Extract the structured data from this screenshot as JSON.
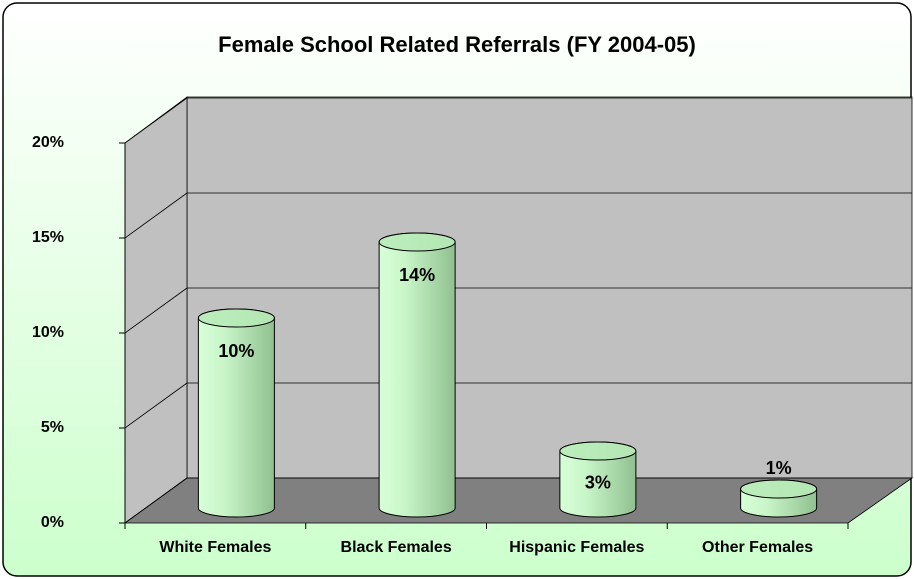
{
  "chart_data": {
    "type": "bar3d",
    "title": "Female School Related Referrals (FY 2004-05)",
    "categories": [
      "White Females",
      "Black Females",
      "Hispanic Females",
      "Other Females"
    ],
    "values": [
      10,
      14,
      3,
      1
    ],
    "value_labels": [
      "10%",
      "14%",
      "3%",
      "1%"
    ],
    "color": "#b8eab8",
    "ylim": [
      0,
      20
    ],
    "yticks": [
      {
        "value": 0,
        "label": "0%"
      },
      {
        "value": 5,
        "label": "5%"
      },
      {
        "value": 10,
        "label": "10%"
      },
      {
        "value": 15,
        "label": "15%"
      },
      {
        "value": 20,
        "label": "20%"
      }
    ],
    "grid": true
  }
}
